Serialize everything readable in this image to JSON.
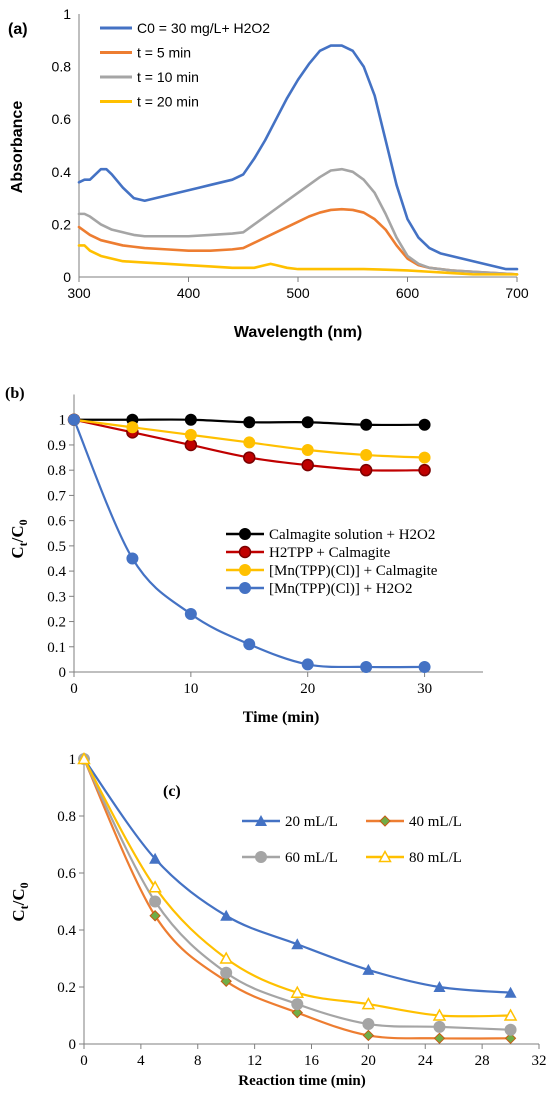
{
  "chart_data": [
    {
      "panel_label": "(a)",
      "type": "line",
      "xlabel": "Wavelength (nm)",
      "ylabel": "Absorbance",
      "xlim": [
        300,
        700
      ],
      "ylim": [
        0,
        1
      ],
      "xticks": [
        "300",
        "400",
        "500",
        "600",
        "700"
      ],
      "yticks": [
        "0",
        "0.2",
        "0.4",
        "0.6",
        "0.8",
        "1"
      ],
      "xtick_values": [
        300,
        400,
        500,
        600,
        700
      ],
      "ytick_values": [
        0,
        0.2,
        0.4,
        0.6,
        0.8,
        1
      ],
      "grid": false,
      "legend_position": "top-left",
      "series": [
        {
          "name": "C0 = 30 mg/L+ H2O2",
          "color": "#4472C4",
          "x": [
            300,
            305,
            310,
            315,
            320,
            325,
            330,
            340,
            350,
            360,
            370,
            380,
            390,
            400,
            410,
            420,
            430,
            440,
            450,
            460,
            470,
            480,
            490,
            500,
            510,
            520,
            530,
            540,
            550,
            560,
            570,
            580,
            590,
            600,
            610,
            620,
            630,
            640,
            650,
            660,
            670,
            680,
            690,
            700
          ],
          "y": [
            0.36,
            0.37,
            0.37,
            0.39,
            0.41,
            0.41,
            0.39,
            0.34,
            0.3,
            0.29,
            0.3,
            0.31,
            0.32,
            0.33,
            0.34,
            0.35,
            0.36,
            0.37,
            0.39,
            0.45,
            0.52,
            0.6,
            0.68,
            0.75,
            0.81,
            0.86,
            0.88,
            0.88,
            0.86,
            0.8,
            0.69,
            0.52,
            0.35,
            0.22,
            0.15,
            0.11,
            0.09,
            0.08,
            0.07,
            0.06,
            0.05,
            0.04,
            0.03,
            0.03
          ]
        },
        {
          "name": "t = 5 min",
          "color": "#ED7D31",
          "x": [
            300,
            310,
            320,
            330,
            340,
            350,
            360,
            380,
            400,
            420,
            440,
            450,
            460,
            470,
            480,
            490,
            500,
            510,
            520,
            530,
            540,
            550,
            560,
            570,
            580,
            590,
            600,
            610,
            620,
            640,
            660,
            680,
            700
          ],
          "y": [
            0.19,
            0.16,
            0.14,
            0.13,
            0.12,
            0.115,
            0.11,
            0.105,
            0.1,
            0.1,
            0.105,
            0.11,
            0.13,
            0.15,
            0.17,
            0.19,
            0.21,
            0.23,
            0.245,
            0.255,
            0.258,
            0.255,
            0.245,
            0.22,
            0.18,
            0.12,
            0.07,
            0.045,
            0.035,
            0.025,
            0.02,
            0.015,
            0.01
          ]
        },
        {
          "name": "t = 10 min",
          "color": "#A5A5A5",
          "x": [
            300,
            305,
            310,
            320,
            330,
            340,
            350,
            360,
            380,
            400,
            420,
            440,
            450,
            460,
            470,
            480,
            490,
            500,
            510,
            520,
            530,
            540,
            550,
            560,
            570,
            580,
            590,
            600,
            610,
            620,
            640,
            660,
            680,
            700
          ],
          "y": [
            0.24,
            0.24,
            0.23,
            0.2,
            0.18,
            0.17,
            0.16,
            0.155,
            0.155,
            0.155,
            0.16,
            0.165,
            0.17,
            0.2,
            0.23,
            0.26,
            0.29,
            0.32,
            0.35,
            0.38,
            0.405,
            0.41,
            0.4,
            0.37,
            0.32,
            0.24,
            0.15,
            0.08,
            0.05,
            0.035,
            0.025,
            0.02,
            0.015,
            0.01
          ]
        },
        {
          "name": "t = 20 min",
          "color": "#FFC000",
          "x": [
            300,
            305,
            310,
            320,
            330,
            340,
            360,
            380,
            400,
            420,
            440,
            450,
            460,
            470,
            475,
            480,
            490,
            500,
            520,
            540,
            560,
            580,
            600,
            620,
            640,
            660,
            680,
            700
          ],
          "y": [
            0.12,
            0.12,
            0.1,
            0.08,
            0.07,
            0.06,
            0.055,
            0.05,
            0.045,
            0.04,
            0.035,
            0.035,
            0.035,
            0.045,
            0.05,
            0.045,
            0.035,
            0.03,
            0.03,
            0.03,
            0.03,
            0.028,
            0.025,
            0.02,
            0.015,
            0.01,
            0.01,
            0.01
          ]
        }
      ]
    },
    {
      "panel_label": "(b)",
      "type": "line",
      "xlabel": "Time (min)",
      "ylabel": "Ct/C0",
      "xlim": [
        0,
        35
      ],
      "ylim": [
        0,
        1.1
      ],
      "xticks": [
        "0",
        "10",
        "20",
        "30"
      ],
      "yticks": [
        "0",
        "0.1",
        "0.2",
        "0.3",
        "0.4",
        "0.5",
        "0.6",
        "0.7",
        "0.8",
        "0.9",
        "1"
      ],
      "xtick_values": [
        0,
        10,
        20,
        30
      ],
      "ytick_values": [
        0,
        0.1,
        0.2,
        0.3,
        0.4,
        0.5,
        0.6,
        0.7,
        0.8,
        0.9,
        1
      ],
      "grid": false,
      "legend_position": "center-right",
      "series": [
        {
          "name": "Calmagite solution + H2O2",
          "color": "#000000",
          "marker": "circle",
          "x": [
            0,
            5,
            10,
            15,
            20,
            25,
            30
          ],
          "y": [
            1,
            1,
            1,
            0.99,
            0.99,
            0.98,
            0.98
          ]
        },
        {
          "name": "H2TPP + Calmagite",
          "color": "#C00000",
          "marker": "circle",
          "x": [
            0,
            5,
            10,
            15,
            20,
            25,
            30
          ],
          "y": [
            1,
            0.95,
            0.9,
            0.85,
            0.82,
            0.8,
            0.8
          ]
        },
        {
          "name": "[Mn(TPP)(Cl)] + Calmagite",
          "color": "#FFC000",
          "marker": "circle",
          "x": [
            0,
            5,
            10,
            15,
            20,
            25,
            30
          ],
          "y": [
            1,
            0.97,
            0.94,
            0.91,
            0.88,
            0.86,
            0.85
          ]
        },
        {
          "name": "[Mn(TPP)(Cl)] + H2O2",
          "color": "#4472C4",
          "marker": "circle",
          "x": [
            0,
            5,
            10,
            15,
            20,
            25,
            30
          ],
          "y": [
            1,
            0.45,
            0.23,
            0.11,
            0.03,
            0.02,
            0.02
          ]
        }
      ]
    },
    {
      "panel_label": "(c)",
      "type": "line",
      "xlabel": "Reaction time (min)",
      "ylabel": "Ct/C0",
      "xlim": [
        0,
        32
      ],
      "ylim": [
        0,
        1
      ],
      "xticks": [
        "0",
        "4",
        "8",
        "12",
        "16",
        "20",
        "24",
        "28",
        "32"
      ],
      "yticks": [
        "0",
        "0.2",
        "0.4",
        "0.6",
        "0.8",
        "1"
      ],
      "xtick_values": [
        0,
        4,
        8,
        12,
        16,
        20,
        24,
        28,
        32
      ],
      "ytick_values": [
        0,
        0.2,
        0.4,
        0.6,
        0.8,
        1
      ],
      "grid": false,
      "legend_position": "top-right",
      "series": [
        {
          "name": "20 mL/L",
          "color": "#4472C4",
          "marker": "triangle",
          "x": [
            0,
            5,
            10,
            15,
            20,
            25,
            30
          ],
          "y": [
            1,
            0.65,
            0.45,
            0.35,
            0.26,
            0.2,
            0.18
          ]
        },
        {
          "name": "40 mL/L",
          "color": "#ED7D31",
          "marker": "diamond",
          "x": [
            0,
            5,
            10,
            15,
            20,
            25,
            30
          ],
          "y": [
            1,
            0.45,
            0.22,
            0.11,
            0.03,
            0.02,
            0.02
          ]
        },
        {
          "name": "60 mL/L",
          "color": "#A5A5A5",
          "marker": "circle",
          "x": [
            0,
            5,
            10,
            15,
            20,
            25,
            30
          ],
          "y": [
            1,
            0.5,
            0.25,
            0.14,
            0.07,
            0.06,
            0.05
          ]
        },
        {
          "name": "80 mL/L",
          "color": "#FFC000",
          "marker": "triangle-open",
          "x": [
            0,
            5,
            10,
            15,
            20,
            25,
            30
          ],
          "y": [
            1,
            0.55,
            0.3,
            0.18,
            0.14,
            0.1,
            0.1
          ]
        }
      ]
    }
  ]
}
